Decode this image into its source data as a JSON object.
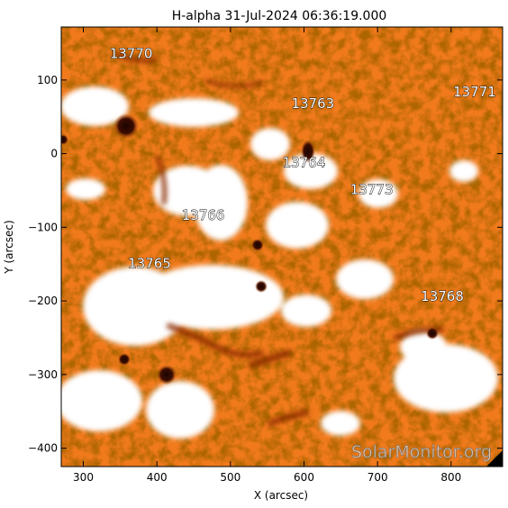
{
  "title": "H-alpha 31-Jul-2024 06:36:19.000",
  "axes": {
    "xlabel": "X (arcsec)",
    "ylabel": "Y (arcsec)",
    "xlim": [
      270,
      870
    ],
    "ylim": [
      -425,
      172
    ],
    "xticks": [
      300,
      400,
      500,
      600,
      700,
      800
    ],
    "yticks": [
      100,
      0,
      -100,
      -200,
      -300,
      -400
    ],
    "xtick_labels": [
      "300",
      "400",
      "500",
      "600",
      "700",
      "800"
    ],
    "ytick_labels": [
      "100",
      "0",
      "−100",
      "−200",
      "−300",
      "−400"
    ]
  },
  "regions": [
    {
      "label": "13770",
      "x": 365,
      "y": 130
    },
    {
      "label": "13763",
      "x": 612,
      "y": 62
    },
    {
      "label": "13771",
      "x": 832,
      "y": 78
    },
    {
      "label": "13764",
      "x": 600,
      "y": -18
    },
    {
      "label": "13773",
      "x": 692,
      "y": -55
    },
    {
      "label": "13766",
      "x": 463,
      "y": -90
    },
    {
      "label": "13765",
      "x": 390,
      "y": -155
    },
    {
      "label": "13768",
      "x": 788,
      "y": -200
    }
  ],
  "watermark": "SolarMonitor.org",
  "colors": {
    "background": "#ffffff",
    "chromosphere": "#f07a1c",
    "fibril_dark": "#7a2400",
    "plage": "#ffffff",
    "spot": "#2a0800",
    "frame": "#000000"
  }
}
